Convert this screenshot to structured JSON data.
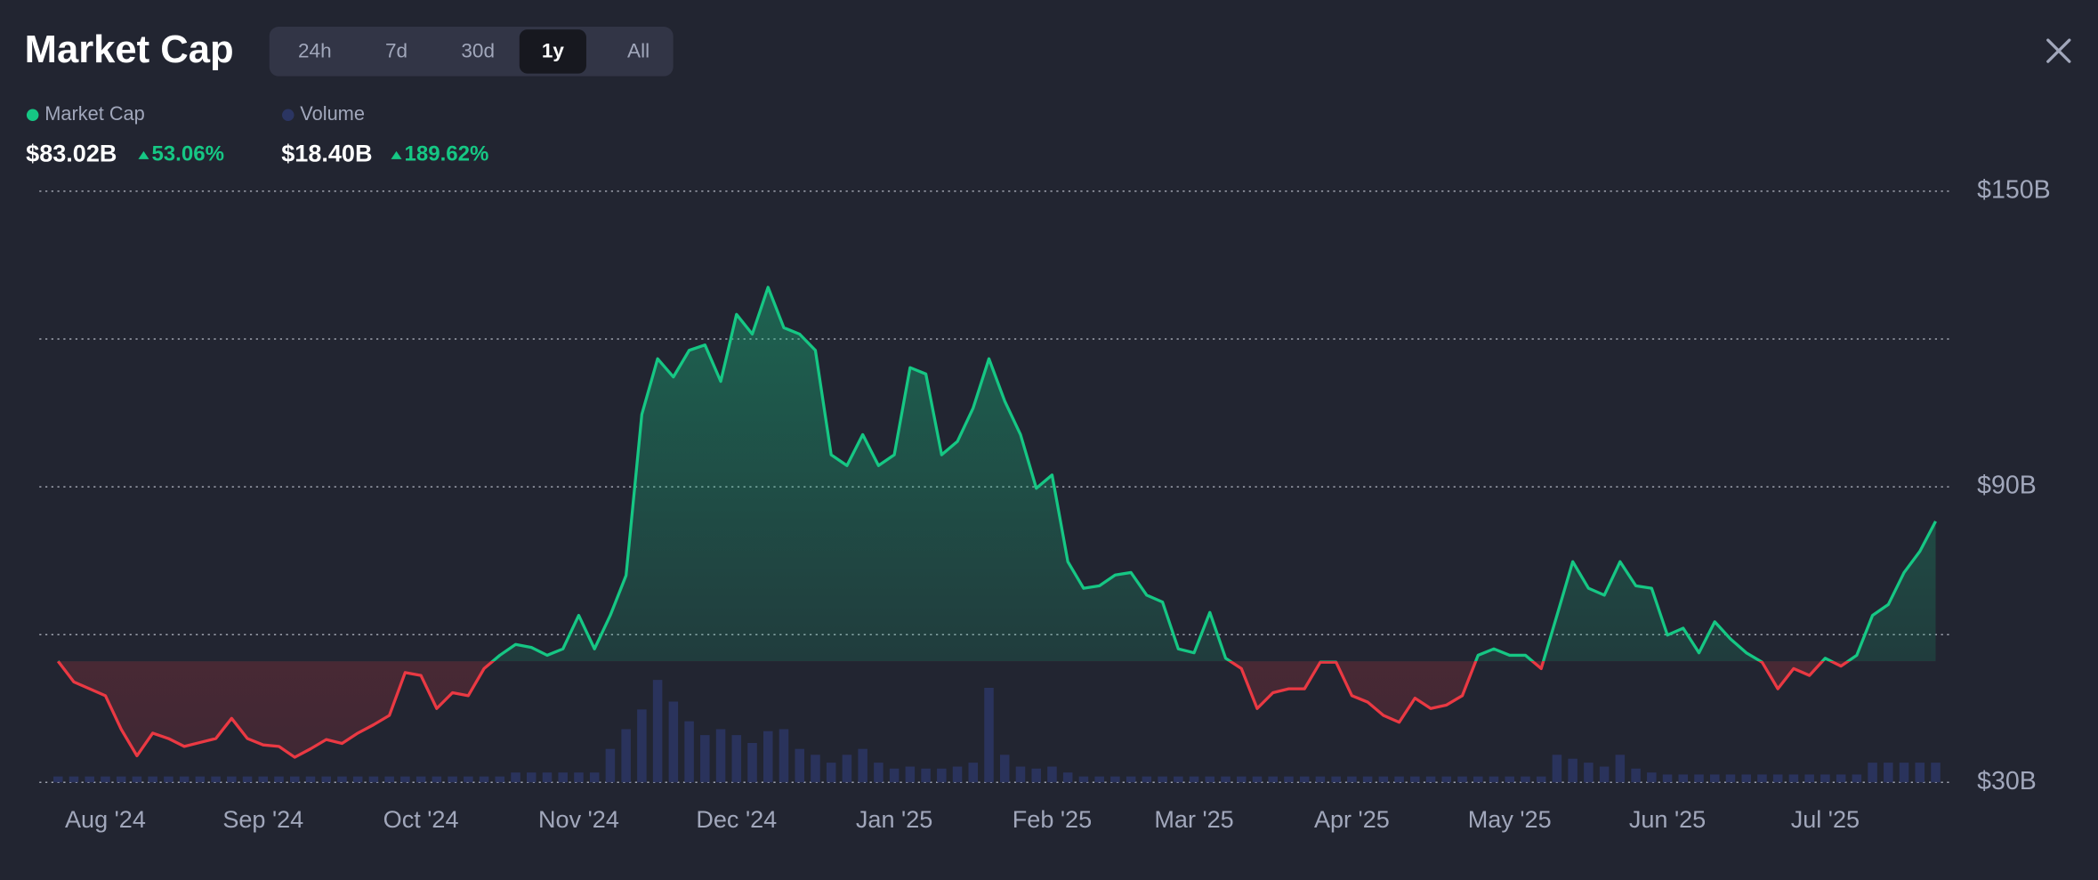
{
  "header": {
    "title": "Market Cap",
    "tabs": [
      "24h",
      "7d",
      "30d",
      "1y",
      "All"
    ],
    "active_tab": 3
  },
  "stats": [
    {
      "label": "Market Cap",
      "value": "$83.02B",
      "change": "53.06%",
      "color": "#16c784"
    },
    {
      "label": "Volume",
      "value": "$18.40B",
      "change": "189.62%",
      "color": "#2b3562"
    }
  ],
  "chart_data": {
    "type": "baseline-area",
    "categories": [
      null,
      null,
      null,
      "Aug '24",
      null,
      null,
      null,
      null,
      null,
      null,
      null,
      null,
      null,
      "Sep '24",
      null,
      null,
      null,
      null,
      null,
      null,
      null,
      null,
      null,
      "Oct '24",
      null,
      null,
      null,
      null,
      null,
      null,
      null,
      null,
      null,
      "Nov '24",
      null,
      null,
      null,
      null,
      null,
      null,
      null,
      null,
      null,
      "Dec '24",
      null,
      null,
      null,
      null,
      null,
      null,
      null,
      null,
      null,
      "Jan '25",
      null,
      null,
      null,
      null,
      null,
      null,
      null,
      null,
      null,
      "Feb '25",
      null,
      null,
      null,
      null,
      null,
      null,
      null,
      null,
      "Mar '25",
      null,
      null,
      null,
      null,
      null,
      null,
      null,
      null,
      null,
      "Apr '25",
      null,
      null,
      null,
      null,
      null,
      null,
      null,
      null,
      null,
      "May '25",
      null,
      null,
      null,
      null,
      null,
      null,
      null,
      null,
      null,
      "Jun '25",
      null,
      null,
      null,
      null,
      null,
      null,
      null,
      null,
      null,
      "Jul '25",
      null,
      null,
      null,
      null,
      null,
      null,
      null
    ],
    "series": [
      {
        "name": "Market Cap",
        "up_color": "#16c784",
        "down_color": "#ea3943",
        "values": [
          54.6,
          50.4,
          49,
          47.6,
          40.8,
          35.4,
          40,
          38.9,
          37.3,
          38.1,
          38.9,
          43,
          38.9,
          37.6,
          37.3,
          35.1,
          36.8,
          38.7,
          37.9,
          40,
          41.7,
          43.6,
          52.3,
          51.7,
          45,
          48.2,
          47.6,
          53.1,
          55.8,
          58,
          57.4,
          55.8,
          57.1,
          63.9,
          57.1,
          63.9,
          72,
          104.7,
          116,
          112.3,
          117.7,
          118.8,
          111.4,
          125,
          121,
          130.5,
          122.3,
          121,
          117.7,
          96.5,
          94.3,
          100.6,
          94.3,
          96.5,
          114.2,
          112.9,
          96.5,
          99.2,
          106,
          116,
          107.4,
          100.6,
          89.7,
          92.4,
          74.8,
          69.4,
          69.9,
          72.1,
          72.6,
          68,
          66.6,
          57.1,
          56.3,
          64.5,
          55.2,
          53.1,
          45,
          48.2,
          49,
          49,
          54.4,
          54.4,
          47.6,
          46.3,
          43.6,
          42.2,
          47.1,
          45,
          45.7,
          47.6,
          55.8,
          57.1,
          55.8,
          55.8,
          53.1,
          63.9,
          74.8,
          69.4,
          68,
          74.8,
          69.9,
          69.4,
          59.9,
          61.3,
          56.3,
          62.6,
          59.1,
          56.3,
          54.4,
          49,
          53.1,
          51.7,
          55.2,
          53.6,
          55.8,
          63.9,
          66.1,
          72.6,
          76.9,
          83
        ]
      },
      {
        "name": "Volume",
        "color": "#2b3562",
        "axis": "y2",
        "values": [
          3,
          3,
          3,
          3,
          3,
          3,
          3,
          3,
          3,
          3,
          3,
          3,
          3,
          3,
          3,
          3,
          3,
          3,
          3,
          3,
          3,
          3,
          3,
          3,
          3,
          3,
          3,
          3,
          3,
          5,
          5,
          5,
          5,
          5,
          5,
          17,
          27,
          37,
          52,
          41,
          31,
          24,
          27,
          24,
          20,
          26,
          27,
          17,
          14,
          10,
          14,
          17,
          10,
          7,
          8,
          7,
          7,
          8,
          10,
          48,
          14,
          8,
          7,
          8,
          5,
          3,
          3,
          3,
          3,
          3,
          3,
          3,
          3,
          3,
          3,
          3,
          3,
          3,
          3,
          3,
          3,
          3,
          3,
          3,
          3,
          3,
          3,
          3,
          3,
          3,
          3,
          3,
          3,
          3,
          3,
          14,
          12,
          10,
          8,
          14,
          7,
          5,
          4,
          4,
          4,
          4,
          4,
          4,
          4,
          4,
          4,
          4,
          4,
          4,
          4,
          10,
          10,
          10,
          10,
          10
        ]
      }
    ],
    "baseline": 54.6,
    "ylim": [
      30,
      150
    ],
    "yticks": [
      {
        "value": 30,
        "label": "$30B"
      },
      {
        "value": 60,
        "label": null
      },
      {
        "value": 90,
        "label": "$90B"
      },
      {
        "value": 120,
        "label": null
      },
      {
        "value": 150,
        "label": "$150B"
      }
    ],
    "y2lim": [
      0,
      300
    ],
    "grid": true
  }
}
